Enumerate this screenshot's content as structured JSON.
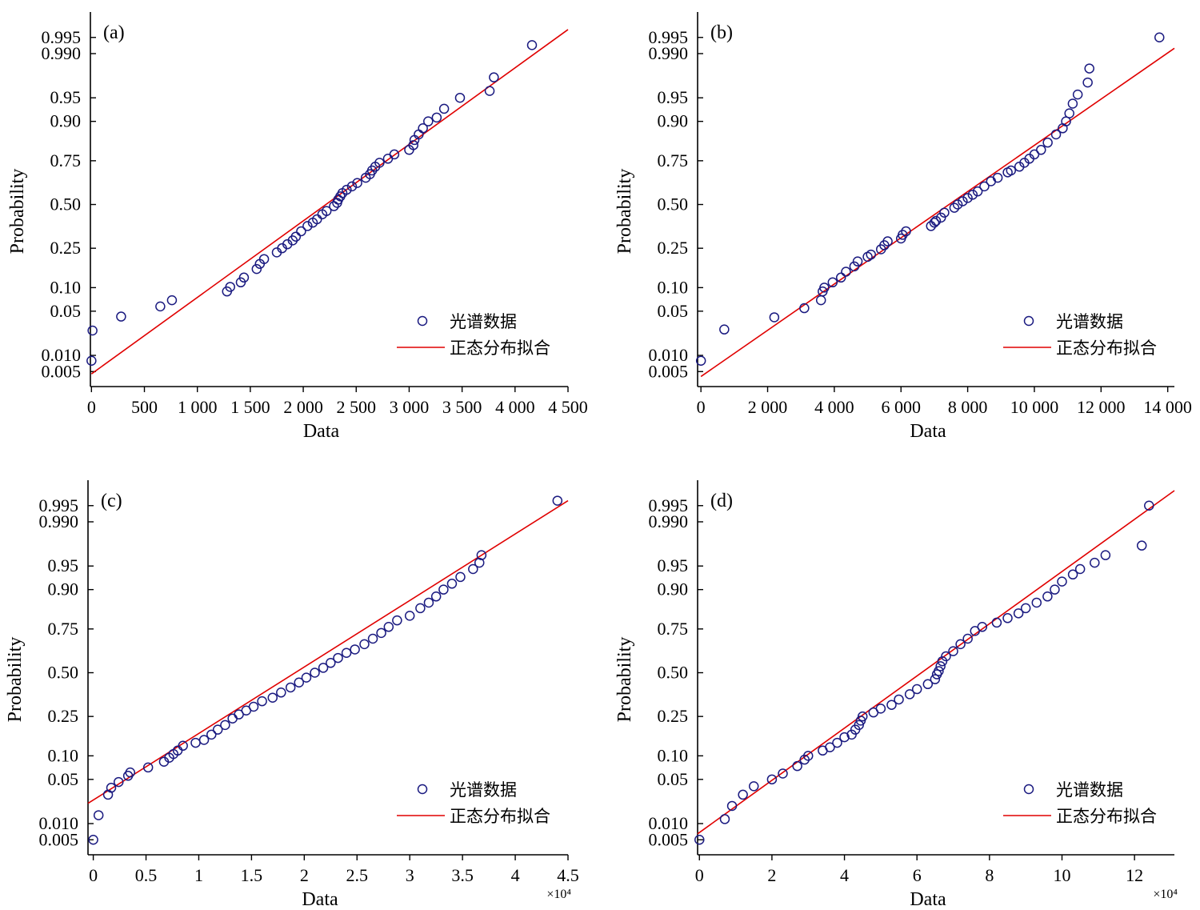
{
  "colors": {
    "marker": "#1a1a80",
    "fit": "#e00000",
    "axis": "#000000"
  },
  "legend": {
    "marker_label": "光谱数据",
    "line_label": "正态分布拟合"
  },
  "chart_data": [
    {
      "type": "scatter",
      "panel_label": "(a)",
      "xlabel": "Data",
      "ylabel": "Probability",
      "x_multiplier": "",
      "xlim": [
        -10,
        4500
      ],
      "xticks": [
        0,
        500,
        1000,
        1500,
        2000,
        2500,
        3000,
        3500,
        4000,
        4500
      ],
      "xtick_labels": [
        "0",
        "500",
        "1 000",
        "1 500",
        "2 000",
        "2 500",
        "3 000",
        "3 500",
        "4 000",
        "4 500"
      ],
      "yticks": [
        0.005,
        0.01,
        0.05,
        0.1,
        0.25,
        0.5,
        0.75,
        0.9,
        0.95,
        0.99,
        0.995
      ],
      "ytick_labels": [
        "0.005",
        "0.010",
        "0.05",
        "0.10",
        "0.25",
        "0.50",
        "0.75",
        "0.90",
        "0.95",
        "0.990",
        "0.995"
      ],
      "fit_line": [
        [
          0,
          0.0045
        ],
        [
          4500,
          0.9965
        ]
      ],
      "points": [
        [
          0,
          0.008
        ],
        [
          10,
          0.026
        ],
        [
          280,
          0.042
        ],
        [
          650,
          0.058
        ],
        [
          760,
          0.07
        ],
        [
          1280,
          0.09
        ],
        [
          1310,
          0.102
        ],
        [
          1410,
          0.115
        ],
        [
          1440,
          0.13
        ],
        [
          1560,
          0.16
        ],
        [
          1590,
          0.18
        ],
        [
          1630,
          0.2
        ],
        [
          1750,
          0.23
        ],
        [
          1800,
          0.25
        ],
        [
          1850,
          0.27
        ],
        [
          1900,
          0.29
        ],
        [
          1930,
          0.31
        ],
        [
          1980,
          0.34
        ],
        [
          2040,
          0.37
        ],
        [
          2090,
          0.39
        ],
        [
          2130,
          0.41
        ],
        [
          2180,
          0.44
        ],
        [
          2220,
          0.46
        ],
        [
          2290,
          0.49
        ],
        [
          2320,
          0.51
        ],
        [
          2330,
          0.53
        ],
        [
          2350,
          0.55
        ],
        [
          2370,
          0.57
        ],
        [
          2410,
          0.59
        ],
        [
          2460,
          0.61
        ],
        [
          2510,
          0.63
        ],
        [
          2590,
          0.66
        ],
        [
          2630,
          0.68
        ],
        [
          2650,
          0.7
        ],
        [
          2680,
          0.72
        ],
        [
          2720,
          0.74
        ],
        [
          2800,
          0.76
        ],
        [
          2860,
          0.78
        ],
        [
          3000,
          0.8
        ],
        [
          3040,
          0.82
        ],
        [
          3050,
          0.84
        ],
        [
          3090,
          0.86
        ],
        [
          3130,
          0.88
        ],
        [
          3180,
          0.9
        ],
        [
          3260,
          0.91
        ],
        [
          3330,
          0.93
        ],
        [
          3480,
          0.95
        ],
        [
          3760,
          0.96
        ],
        [
          3800,
          0.975
        ],
        [
          4160,
          0.993
        ]
      ]
    },
    {
      "type": "scatter",
      "panel_label": "(b)",
      "xlabel": "Data",
      "ylabel": "Probability",
      "x_multiplier": "",
      "xlim": [
        -100,
        14200
      ],
      "xticks": [
        0,
        2000,
        4000,
        6000,
        8000,
        10000,
        12000,
        14000
      ],
      "xtick_labels": [
        "0",
        "2 000",
        "4 000",
        "6 000",
        "8 000",
        "10 000",
        "12 000",
        "14 000"
      ],
      "yticks": [
        0.005,
        0.01,
        0.05,
        0.1,
        0.25,
        0.5,
        0.75,
        0.9,
        0.95,
        0.99,
        0.995
      ],
      "ytick_labels": [
        "0.005",
        "0.010",
        "0.05",
        "0.10",
        "0.25",
        "0.50",
        "0.75",
        "0.90",
        "0.95",
        "0.990",
        "0.995"
      ],
      "fit_line": [
        [
          0,
          0.004
        ],
        [
          14200,
          0.992
        ]
      ],
      "points": [
        [
          0,
          0.008
        ],
        [
          700,
          0.027
        ],
        [
          2200,
          0.041
        ],
        [
          3100,
          0.055
        ],
        [
          3600,
          0.07
        ],
        [
          3650,
          0.09
        ],
        [
          3700,
          0.1
        ],
        [
          3950,
          0.115
        ],
        [
          4200,
          0.13
        ],
        [
          4350,
          0.15
        ],
        [
          4600,
          0.17
        ],
        [
          4700,
          0.19
        ],
        [
          5000,
          0.21
        ],
        [
          5100,
          0.22
        ],
        [
          5400,
          0.245
        ],
        [
          5500,
          0.265
        ],
        [
          5600,
          0.285
        ],
        [
          6000,
          0.3
        ],
        [
          6050,
          0.32
        ],
        [
          6150,
          0.34
        ],
        [
          6900,
          0.37
        ],
        [
          7000,
          0.39
        ],
        [
          7050,
          0.4
        ],
        [
          7200,
          0.42
        ],
        [
          7300,
          0.45
        ],
        [
          7600,
          0.48
        ],
        [
          7700,
          0.5
        ],
        [
          7850,
          0.52
        ],
        [
          8000,
          0.54
        ],
        [
          8150,
          0.56
        ],
        [
          8300,
          0.58
        ],
        [
          8500,
          0.61
        ],
        [
          8700,
          0.64
        ],
        [
          8900,
          0.66
        ],
        [
          9200,
          0.69
        ],
        [
          9300,
          0.7
        ],
        [
          9550,
          0.72
        ],
        [
          9700,
          0.74
        ],
        [
          9850,
          0.76
        ],
        [
          10000,
          0.78
        ],
        [
          10200,
          0.8
        ],
        [
          10400,
          0.83
        ],
        [
          10650,
          0.86
        ],
        [
          10850,
          0.88
        ],
        [
          10950,
          0.9
        ],
        [
          11050,
          0.92
        ],
        [
          11150,
          0.94
        ],
        [
          11300,
          0.955
        ],
        [
          11600,
          0.97
        ],
        [
          11650,
          0.982
        ],
        [
          13750,
          0.995
        ]
      ]
    },
    {
      "type": "scatter",
      "panel_label": "(c)",
      "xlabel": "Data",
      "ylabel": "Probability",
      "x_multiplier": "×10⁴",
      "xlim": [
        -0.05,
        4.5
      ],
      "xticks": [
        0,
        0.5,
        1,
        1.5,
        2,
        2.5,
        3,
        3.5,
        4,
        4.5
      ],
      "xtick_labels": [
        "0",
        "0.5",
        "1",
        "1.5",
        "2",
        "2.5",
        "3",
        "3.5",
        "4",
        "4.5"
      ],
      "yticks": [
        0.005,
        0.01,
        0.05,
        0.1,
        0.25,
        0.5,
        0.75,
        0.9,
        0.95,
        0.99,
        0.995
      ],
      "ytick_labels": [
        "0.005",
        "0.010",
        "0.05",
        "0.10",
        "0.25",
        "0.50",
        "0.75",
        "0.90",
        "0.95",
        "0.990",
        "0.995"
      ],
      "fit_line": [
        [
          -0.05,
          0.022
        ],
        [
          4.5,
          0.996
        ]
      ],
      "points": [
        [
          0,
          0.005
        ],
        [
          0.05,
          0.014
        ],
        [
          0.14,
          0.03
        ],
        [
          0.17,
          0.038
        ],
        [
          0.24,
          0.046
        ],
        [
          0.33,
          0.056
        ],
        [
          0.35,
          0.062
        ],
        [
          0.52,
          0.072
        ],
        [
          0.67,
          0.085
        ],
        [
          0.72,
          0.095
        ],
        [
          0.76,
          0.105
        ],
        [
          0.8,
          0.115
        ],
        [
          0.85,
          0.13
        ],
        [
          0.97,
          0.14
        ],
        [
          1.05,
          0.15
        ],
        [
          1.12,
          0.17
        ],
        [
          1.18,
          0.19
        ],
        [
          1.25,
          0.21
        ],
        [
          1.32,
          0.24
        ],
        [
          1.38,
          0.26
        ],
        [
          1.45,
          0.28
        ],
        [
          1.52,
          0.3
        ],
        [
          1.6,
          0.33
        ],
        [
          1.7,
          0.35
        ],
        [
          1.78,
          0.38
        ],
        [
          1.87,
          0.41
        ],
        [
          1.95,
          0.44
        ],
        [
          2.02,
          0.47
        ],
        [
          2.1,
          0.5
        ],
        [
          2.18,
          0.53
        ],
        [
          2.25,
          0.56
        ],
        [
          2.32,
          0.59
        ],
        [
          2.4,
          0.62
        ],
        [
          2.48,
          0.64
        ],
        [
          2.57,
          0.67
        ],
        [
          2.65,
          0.7
        ],
        [
          2.73,
          0.73
        ],
        [
          2.8,
          0.76
        ],
        [
          2.88,
          0.79
        ],
        [
          3.0,
          0.81
        ],
        [
          3.1,
          0.84
        ],
        [
          3.18,
          0.86
        ],
        [
          3.25,
          0.88
        ],
        [
          3.32,
          0.9
        ],
        [
          3.4,
          0.915
        ],
        [
          3.48,
          0.93
        ],
        [
          3.6,
          0.945
        ],
        [
          3.66,
          0.955
        ],
        [
          3.68,
          0.965
        ],
        [
          4.4,
          0.996
        ]
      ]
    },
    {
      "type": "scatter",
      "panel_label": "(d)",
      "xlabel": "Data",
      "ylabel": "Probability",
      "x_multiplier": "×10⁴",
      "xlim": [
        -0.05,
        13.1
      ],
      "xticks": [
        0,
        2,
        4,
        6,
        8,
        10,
        12
      ],
      "xtick_labels": [
        "0",
        "2",
        "4",
        "6",
        "8",
        "10",
        "12"
      ],
      "yticks": [
        0.005,
        0.01,
        0.05,
        0.1,
        0.25,
        0.5,
        0.75,
        0.9,
        0.95,
        0.99,
        0.995
      ],
      "ytick_labels": [
        "0.005",
        "0.010",
        "0.05",
        "0.10",
        "0.25",
        "0.50",
        "0.75",
        "0.90",
        "0.95",
        "0.990",
        "0.995"
      ],
      "fit_line": [
        [
          -0.05,
          0.0065
        ],
        [
          13.1,
          0.9975
        ]
      ],
      "points": [
        [
          0,
          0.005
        ],
        [
          0.7,
          0.012
        ],
        [
          0.9,
          0.02
        ],
        [
          1.2,
          0.03
        ],
        [
          1.5,
          0.04
        ],
        [
          2.0,
          0.05
        ],
        [
          2.3,
          0.06
        ],
        [
          2.7,
          0.075
        ],
        [
          2.9,
          0.09
        ],
        [
          3.0,
          0.1
        ],
        [
          3.4,
          0.115
        ],
        [
          3.6,
          0.125
        ],
        [
          3.8,
          0.14
        ],
        [
          4.0,
          0.16
        ],
        [
          4.2,
          0.17
        ],
        [
          4.3,
          0.19
        ],
        [
          4.4,
          0.21
        ],
        [
          4.45,
          0.23
        ],
        [
          4.5,
          0.25
        ],
        [
          4.8,
          0.27
        ],
        [
          5.0,
          0.29
        ],
        [
          5.3,
          0.31
        ],
        [
          5.5,
          0.34
        ],
        [
          5.8,
          0.37
        ],
        [
          6.0,
          0.4
        ],
        [
          6.3,
          0.43
        ],
        [
          6.5,
          0.46
        ],
        [
          6.55,
          0.49
        ],
        [
          6.6,
          0.51
        ],
        [
          6.65,
          0.54
        ],
        [
          6.7,
          0.57
        ],
        [
          6.8,
          0.6
        ],
        [
          7.0,
          0.63
        ],
        [
          7.2,
          0.67
        ],
        [
          7.4,
          0.7
        ],
        [
          7.6,
          0.74
        ],
        [
          7.8,
          0.76
        ],
        [
          8.2,
          0.78
        ],
        [
          8.5,
          0.8
        ],
        [
          8.8,
          0.82
        ],
        [
          9.0,
          0.84
        ],
        [
          9.3,
          0.86
        ],
        [
          9.6,
          0.88
        ],
        [
          9.8,
          0.9
        ],
        [
          10.0,
          0.92
        ],
        [
          10.3,
          0.935
        ],
        [
          10.5,
          0.945
        ],
        [
          10.9,
          0.955
        ],
        [
          11.2,
          0.965
        ],
        [
          12.2,
          0.975
        ],
        [
          12.4,
          0.995
        ]
      ]
    }
  ]
}
